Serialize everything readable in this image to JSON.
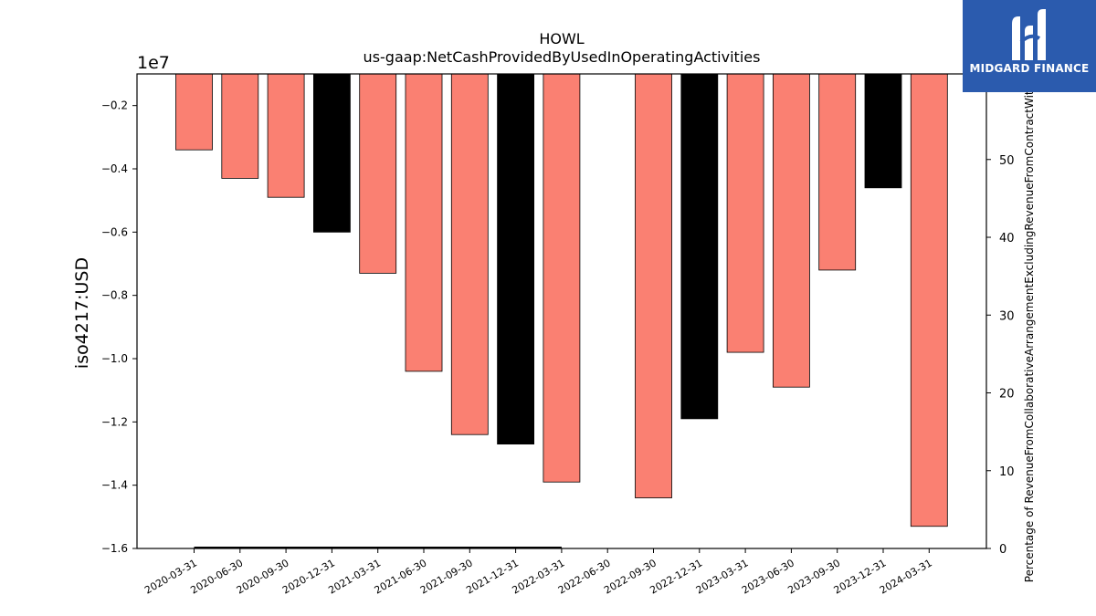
{
  "brand": {
    "name": "MIDGARD FINANCE"
  },
  "chart_data": {
    "type": "bar",
    "title": "HOWL",
    "subtitle": "us-gaap:NetCashProvidedByUsedInOperatingActivities",
    "ylabel": "iso4217:USD",
    "y_offset_label": "1e7",
    "y2label": "Percentage of RevenueFromCollaborativeArrangementExcludingRevenueFromContractWith",
    "ylim": [
      -1.6,
      -0.1
    ],
    "yticks": [
      -0.2,
      -0.4,
      -0.6,
      -0.8,
      -1.0,
      -1.2,
      -1.4,
      -1.6
    ],
    "y2lim": [
      0,
      61
    ],
    "y2ticks": [
      0,
      10,
      20,
      30,
      40,
      50
    ],
    "categories": [
      "2020-03-31",
      "2020-06-30",
      "2020-09-30",
      "2020-12-31",
      "2021-03-31",
      "2021-06-30",
      "2021-09-30",
      "2021-12-31",
      "2022-03-31",
      "2022-06-30",
      "2022-09-30",
      "2022-12-31",
      "2023-03-31",
      "2023-06-30",
      "2023-09-30",
      "2023-12-31",
      "2024-03-31"
    ],
    "values": [
      -0.34,
      -0.43,
      -0.49,
      -0.6,
      -0.73,
      -1.04,
      -1.24,
      -1.27,
      -1.39,
      null,
      -1.44,
      -1.19,
      -0.98,
      -1.09,
      -0.72,
      -0.46,
      -1.53
    ],
    "bar_colors": [
      "#fa8072",
      "#fa8072",
      "#fa8072",
      "#000000",
      "#fa8072",
      "#fa8072",
      "#fa8072",
      "#000000",
      "#fa8072",
      "#fa8072",
      "#fa8072",
      "#000000",
      "#fa8072",
      "#fa8072",
      "#fa8072",
      "#000000",
      "#fa8072"
    ],
    "secondary_line": {
      "from": "2020-03-31",
      "to": "2022-03-31",
      "value": 0,
      "color": "#000000"
    },
    "grid": false,
    "legend": "none"
  }
}
